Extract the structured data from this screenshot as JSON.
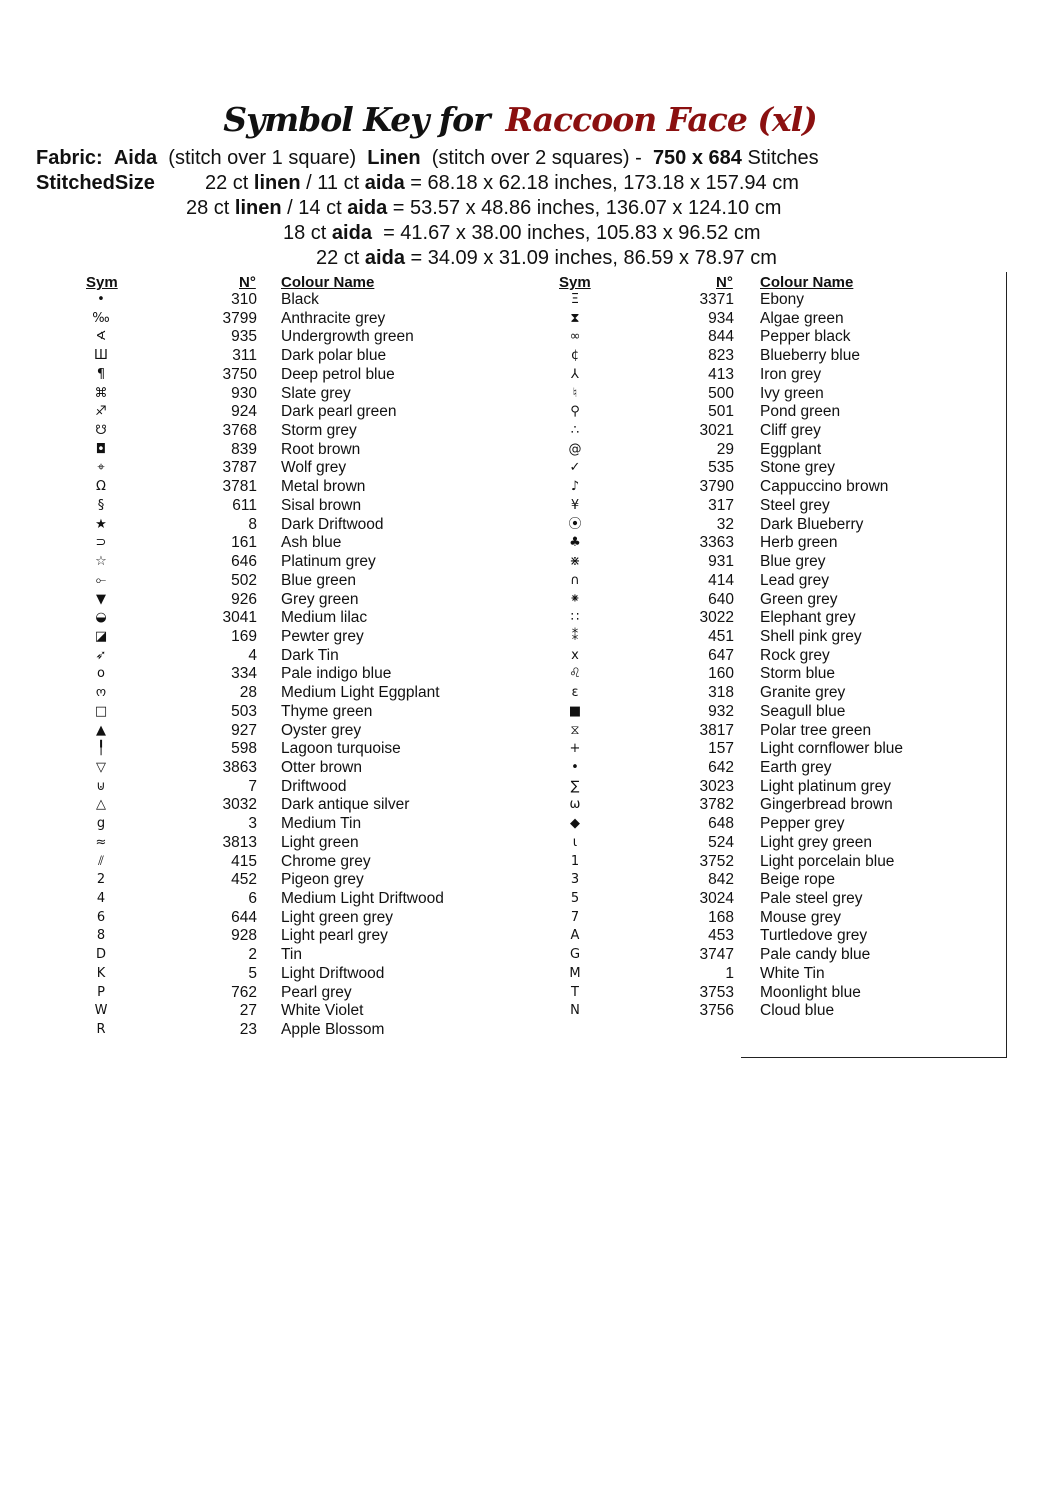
{
  "title": {
    "prefix": "Symbol Key for",
    "pattern": "Raccoon Face (xl)"
  },
  "fabric": {
    "label": "Fabric:",
    "aida": "Aida",
    "aida_note": "(stitch over 1 square)",
    "linen": "Linen",
    "linen_note": "(stitch over 2 squares) -",
    "stitches": "750 x 684",
    "stitches_label": "Stitches"
  },
  "sizes": {
    "label": "StitchedSize",
    "lines": [
      {
        "a": "22 ct ",
        "b": "linen",
        "c": " / 11 ct ",
        "d": "aida",
        "e": " = 68.18 x 62.18 inches, 173.18 x 157.94 cm"
      },
      {
        "a": "28 ct ",
        "b": "linen",
        "c": " / 14 ct ",
        "d": "aida",
        "e": " = 53.57 x 48.86 inches, 136.07 x 124.10 cm"
      },
      {
        "a": "18 ct ",
        "b": "",
        "c": "",
        "d": "aida",
        "e": "  = 41.67 x 38.00 inches, 105.83 x 96.52 cm"
      },
      {
        "a": "22 ct ",
        "b": "",
        "c": "",
        "d": "aida",
        "e": " = 34.09 x 31.09 inches, 86.59 x 78.97 cm"
      }
    ]
  },
  "headers": {
    "sym": "Sym",
    "num": "N°",
    "name": "Colour Name"
  },
  "left": [
    [
      "•",
      "310",
      "Black"
    ],
    [
      "‰",
      "3799",
      "Anthracite grey"
    ],
    [
      "∢",
      "935",
      "Undergrowth green"
    ],
    [
      "Ш",
      "311",
      "Dark polar blue"
    ],
    [
      "¶",
      "3750",
      "Deep petrol blue"
    ],
    [
      "⌘",
      "930",
      "Slate grey"
    ],
    [
      "♐",
      "924",
      "Dark pearl green"
    ],
    [
      "☋",
      "3768",
      "Storm grey"
    ],
    [
      "◘",
      "839",
      "Root brown"
    ],
    [
      "⌖",
      "3787",
      "Wolf grey"
    ],
    [
      "Ω",
      "3781",
      "Metal brown"
    ],
    [
      "§",
      "611",
      "Sisal brown"
    ],
    [
      "★",
      "8",
      "Dark Driftwood"
    ],
    [
      "⊃",
      "161",
      "Ash blue"
    ],
    [
      "☆",
      "646",
      "Platinum grey"
    ],
    [
      "⟜",
      "502",
      "Blue green"
    ],
    [
      "▼",
      "926",
      "Grey green"
    ],
    [
      "◒",
      "3041",
      "Medium lilac"
    ],
    [
      "◪",
      "169",
      "Pewter grey"
    ],
    [
      "➶",
      "4",
      "Dark Tin"
    ],
    [
      "o",
      "334",
      "Pale indigo blue"
    ],
    [
      "ო",
      "28",
      "Medium Light Eggplant"
    ],
    [
      "□",
      "503",
      "Thyme green"
    ],
    [
      "▲",
      "927",
      "Oyster grey"
    ],
    [
      "╿",
      "598",
      "Lagoon turquoise"
    ],
    [
      "▽",
      "3863",
      "Otter brown"
    ],
    [
      "⊍",
      "7",
      "Driftwood"
    ],
    [
      "△",
      "3032",
      "Dark antique silver"
    ],
    [
      "g",
      "3",
      "Medium Tin"
    ],
    [
      "≈",
      "3813",
      "Light green"
    ],
    [
      "⫽",
      "415",
      "Chrome grey"
    ],
    [
      "2",
      "452",
      "Pigeon grey"
    ],
    [
      "4",
      "6",
      "Medium Light Driftwood"
    ],
    [
      "6",
      "644",
      "Light green grey"
    ],
    [
      "8",
      "928",
      "Light pearl grey"
    ],
    [
      "D",
      "2",
      "Tin"
    ],
    [
      "K",
      "5",
      "Light Driftwood"
    ],
    [
      "P",
      "762",
      "Pearl grey"
    ],
    [
      "W",
      "27",
      "White Violet"
    ],
    [
      "R",
      "23",
      "Apple Blossom"
    ]
  ],
  "right": [
    [
      "Ξ",
      "3371",
      "Ebony"
    ],
    [
      "⧗",
      "934",
      "Algae green"
    ],
    [
      "∞",
      "844",
      "Pepper black"
    ],
    [
      "¢",
      "823",
      "Blueberry blue"
    ],
    [
      "⅄",
      "413",
      "Iron grey"
    ],
    [
      "♮",
      "500",
      "Ivy green"
    ],
    [
      "⚲",
      "501",
      "Pond green"
    ],
    [
      "∴",
      "3021",
      "Cliff grey"
    ],
    [
      "@",
      "29",
      "Eggplant"
    ],
    [
      "✓",
      "535",
      "Stone grey"
    ],
    [
      "♪",
      "3790",
      "Cappuccino brown"
    ],
    [
      "¥",
      "317",
      "Steel grey"
    ],
    [
      "⦿",
      "32",
      "Dark Blueberry"
    ],
    [
      "♣",
      "3363",
      "Herb green"
    ],
    [
      "⋇",
      "931",
      "Blue grey"
    ],
    [
      "∩",
      "414",
      "Lead grey"
    ],
    [
      "⁕",
      "640",
      "Green grey"
    ],
    [
      "∷",
      "3022",
      "Elephant grey"
    ],
    [
      "⁑",
      "451",
      "Shell pink grey"
    ],
    [
      "x",
      "647",
      "Rock grey"
    ],
    [
      "♌",
      "160",
      "Storm blue"
    ],
    [
      "ε",
      "318",
      "Granite grey"
    ],
    [
      "■",
      "932",
      "Seagull blue"
    ],
    [
      "⧖",
      "3817",
      "Polar tree green"
    ],
    [
      "+",
      "157",
      "Light cornflower blue"
    ],
    [
      "•",
      "642",
      "Earth grey"
    ],
    [
      "∑",
      "3023",
      "Light platinum grey"
    ],
    [
      "ω",
      "3782",
      "Gingerbread brown"
    ],
    [
      "◆",
      "648",
      "Pepper grey"
    ],
    [
      "ɩ",
      "524",
      "Light grey green"
    ],
    [
      "1",
      "3752",
      "Light porcelain blue"
    ],
    [
      "3",
      "842",
      "Beige rope"
    ],
    [
      "5",
      "3024",
      "Pale steel grey"
    ],
    [
      "7",
      "168",
      "Mouse grey"
    ],
    [
      "A",
      "453",
      "Turtledove grey"
    ],
    [
      "G",
      "3747",
      "Pale candy blue"
    ],
    [
      "M",
      "1",
      "White Tin"
    ],
    [
      "T",
      "3753",
      "Moonlight blue"
    ],
    [
      "N",
      "3756",
      "Cloud blue"
    ]
  ],
  "colors": {
    "pattern_title": "#8b1010"
  }
}
